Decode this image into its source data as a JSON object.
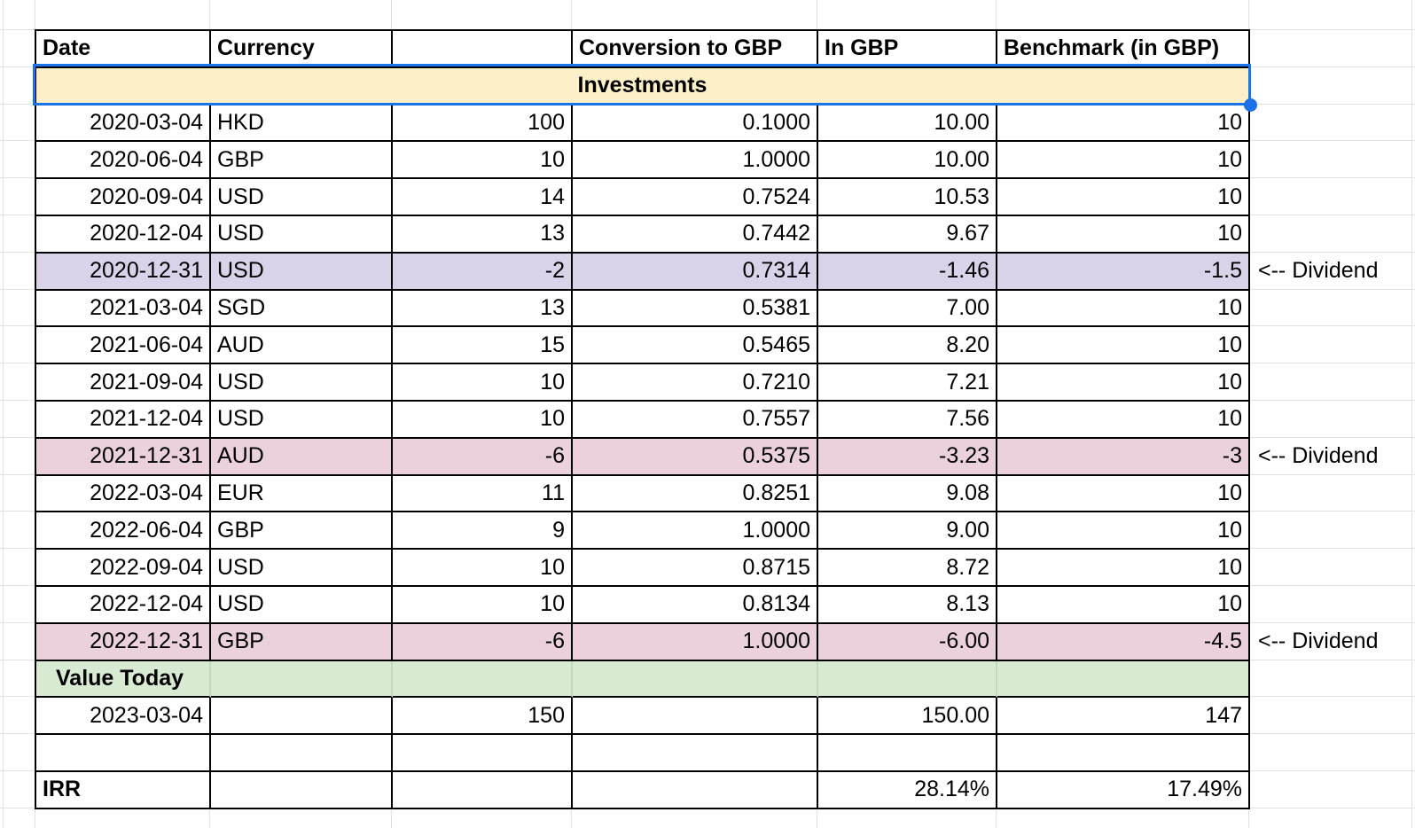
{
  "sheet": {
    "banner_label": "Investments",
    "annotation_label": "<-- Dividend",
    "colors": {
      "accent_selection_blue": "#1a73e8",
      "banner_cream": "#fdf0c9",
      "dividend_purple": "#d9d2e9",
      "dividend_pink": "#ead1dc",
      "value_today_green": "#d9ead3",
      "green_inner_line": "#c7d8c1",
      "faint_gridline": "#e1e1e1",
      "table_border": "#000000"
    },
    "rows": [
      {
        "type": "header",
        "cells": [
          "Date",
          "Currency",
          "",
          "Conversion to GBP",
          "In GBP",
          "Benchmark (in GBP)"
        ]
      },
      {
        "type": "banner",
        "cells": [
          "Investments"
        ]
      },
      {
        "type": "data",
        "cells": [
          "2020-03-04",
          "HKD",
          "100",
          "0.1000",
          "10.00",
          "10"
        ]
      },
      {
        "type": "data",
        "cells": [
          "2020-06-04",
          "GBP",
          "10",
          "1.0000",
          "10.00",
          "10"
        ]
      },
      {
        "type": "data",
        "cells": [
          "2020-09-04",
          "USD",
          "14",
          "0.7524",
          "10.53",
          "10"
        ]
      },
      {
        "type": "data",
        "cells": [
          "2020-12-04",
          "USD",
          "13",
          "0.7442",
          "9.67",
          "10"
        ]
      },
      {
        "type": "data",
        "bg": "purple",
        "annotation": "<-- Dividend",
        "cells": [
          "2020-12-31",
          "USD",
          "-2",
          "0.7314",
          "-1.46",
          "-1.5"
        ]
      },
      {
        "type": "data",
        "cells": [
          "2021-03-04",
          "SGD",
          "13",
          "0.5381",
          "7.00",
          "10"
        ]
      },
      {
        "type": "data",
        "cells": [
          "2021-06-04",
          "AUD",
          "15",
          "0.5465",
          "8.20",
          "10"
        ]
      },
      {
        "type": "data",
        "cells": [
          "2021-09-04",
          "USD",
          "10",
          "0.7210",
          "7.21",
          "10"
        ]
      },
      {
        "type": "data",
        "cells": [
          "2021-12-04",
          "USD",
          "10",
          "0.7557",
          "7.56",
          "10"
        ]
      },
      {
        "type": "data",
        "bg": "pink",
        "annotation": "<-- Dividend",
        "cells": [
          "2021-12-31",
          "AUD",
          "-6",
          "0.5375",
          "-3.23",
          "-3"
        ]
      },
      {
        "type": "data",
        "cells": [
          "2022-03-04",
          "EUR",
          "11",
          "0.8251",
          "9.08",
          "10"
        ]
      },
      {
        "type": "data",
        "cells": [
          "2022-06-04",
          "GBP",
          "9",
          "1.0000",
          "9.00",
          "10"
        ]
      },
      {
        "type": "data",
        "cells": [
          "2022-09-04",
          "USD",
          "10",
          "0.8715",
          "8.72",
          "10"
        ]
      },
      {
        "type": "data",
        "cells": [
          "2022-12-04",
          "USD",
          "10",
          "0.8134",
          "8.13",
          "10"
        ]
      },
      {
        "type": "data",
        "bg": "pink",
        "annotation": "<-- Dividend",
        "cells": [
          "2022-12-31",
          "GBP",
          "-6",
          "1.0000",
          "-6.00",
          "-4.5"
        ]
      },
      {
        "type": "data",
        "bg": "green",
        "bold_first": true,
        "indent_first": true,
        "cells": [
          "Value Today",
          "",
          "",
          "",
          "",
          ""
        ]
      },
      {
        "type": "data",
        "cells": [
          "2023-03-04",
          "",
          "150",
          "",
          "150.00",
          "147"
        ]
      },
      {
        "type": "data",
        "cells": [
          "",
          "",
          "",
          "",
          "",
          ""
        ]
      },
      {
        "type": "data",
        "bold_first": true,
        "cells": [
          "IRR",
          "",
          "",
          "",
          "28.14%",
          "17.49%"
        ]
      }
    ]
  }
}
